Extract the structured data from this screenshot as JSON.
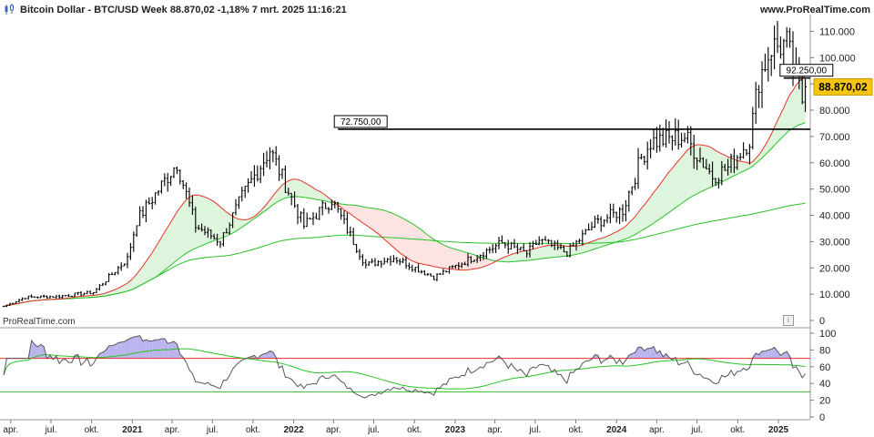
{
  "header": {
    "title": "Bitcoin Dollar - BTC/USD Week 88.870,02 -1,18% 7 mrt. 2025 11:16:21",
    "site": "www.ProRealTime.com"
  },
  "brand": "ProRealTime.com",
  "info_label": "i",
  "colors": {
    "price": "#000000",
    "ma_short": "#e8312a",
    "ma_mid": "#27c227",
    "ma_long": "#27c227",
    "fill_up": "#ddf4dd",
    "fill_down": "#fde3e1",
    "rsi": "#555555",
    "rsi_fill": "#b9b3ee",
    "level_red": "#e8312a",
    "level_green": "#27c227"
  },
  "chart_data": [
    {
      "type": "ohlc",
      "title": "Bitcoin Dollar - BTC/USD Week",
      "ylim": [
        0,
        115000
      ],
      "y_ticks": [
        0,
        10000,
        20000,
        30000,
        40000,
        50000,
        60000,
        70000,
        80000,
        90000,
        100000,
        110000
      ],
      "y_tick_labels": [
        "0",
        "10.000",
        "20.000",
        "30.000",
        "40.000",
        "50.000",
        "60.000",
        "70.000",
        "80.000",
        "",
        "100.000",
        "110.000"
      ],
      "x_labels": [
        "apr.",
        "jul.",
        "okt.",
        "2021",
        "apr.",
        "jul.",
        "okt.",
        "2022",
        "apr.",
        "jul.",
        "okt.",
        "2023",
        "apr.",
        "jul.",
        "okt.",
        "2024",
        "apr.",
        "jul.",
        "okt.",
        "2025"
      ],
      "x_label_bold": [
        false,
        false,
        false,
        true,
        false,
        false,
        false,
        true,
        false,
        false,
        false,
        true,
        false,
        false,
        false,
        true,
        false,
        false,
        false,
        true
      ],
      "price_anchors": [
        [
          "2020-03-16",
          5400
        ],
        [
          "2020-05-04",
          8800
        ],
        [
          "2020-07-20",
          9200
        ],
        [
          "2020-10-05",
          10700
        ],
        [
          "2020-12-21",
          23500
        ],
        [
          "2021-01-11",
          38000
        ],
        [
          "2021-02-22",
          48000
        ],
        [
          "2021-04-12",
          60000
        ],
        [
          "2021-05-24",
          36000
        ],
        [
          "2021-07-19",
          30000
        ],
        [
          "2021-09-06",
          47000
        ],
        [
          "2021-11-08",
          65000
        ],
        [
          "2022-01-24",
          36000
        ],
        [
          "2022-03-28",
          46000
        ],
        [
          "2022-06-13",
          21000
        ],
        [
          "2022-08-15",
          24000
        ],
        [
          "2022-11-14",
          16500
        ],
        [
          "2023-01-30",
          23000
        ],
        [
          "2023-04-17",
          29500
        ],
        [
          "2023-06-12",
          25500
        ],
        [
          "2023-07-10",
          30500
        ],
        [
          "2023-09-11",
          25800
        ],
        [
          "2023-11-13",
          37000
        ],
        [
          "2024-01-15",
          42000
        ],
        [
          "2024-02-26",
          62000
        ],
        [
          "2024-03-18",
          68000
        ],
        [
          "2024-06-03",
          70000
        ],
        [
          "2024-08-05",
          55000
        ],
        [
          "2024-09-09",
          58000
        ],
        [
          "2024-10-28",
          69000
        ],
        [
          "2024-11-18",
          92000
        ],
        [
          "2024-12-16",
          104000
        ],
        [
          "2025-01-20",
          105000
        ],
        [
          "2025-02-24",
          84000
        ],
        [
          "2025-03-03",
          88870
        ]
      ],
      "horizontal_levels": [
        {
          "value": 72750,
          "label": "72.750,00"
        },
        {
          "value": 92250,
          "label": "92.250,00"
        }
      ],
      "last_price": {
        "value": 88870.02,
        "label": "88.870,02"
      },
      "moving_averages": [
        {
          "period": 20,
          "color": "#e8312a"
        },
        {
          "period": 50,
          "color": "#27c227"
        },
        {
          "period": 200,
          "color": "#27c227"
        }
      ]
    },
    {
      "type": "line",
      "indicator": "RSI",
      "ylim": [
        0,
        100
      ],
      "y_ticks": [
        0,
        20,
        40,
        60,
        80,
        100
      ],
      "y_tick_labels": [
        "0",
        "20",
        "40",
        "60",
        "80",
        "100"
      ],
      "levels": [
        {
          "value": 70,
          "color": "#e8312a"
        },
        {
          "value": 30,
          "color": "#27c227"
        }
      ],
      "signal_color": "#27c227"
    }
  ]
}
